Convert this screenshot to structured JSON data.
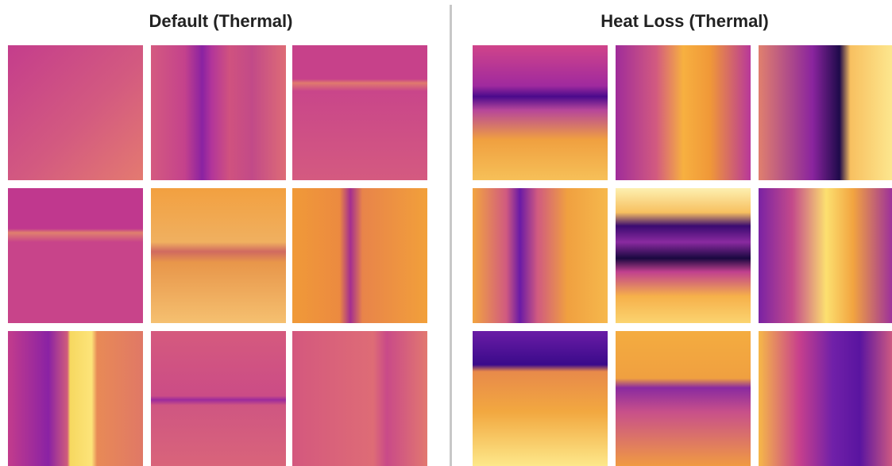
{
  "panels": [
    {
      "title": "Default (Thermal)"
    },
    {
      "title": "Heat Loss (Thermal)"
    }
  ]
}
